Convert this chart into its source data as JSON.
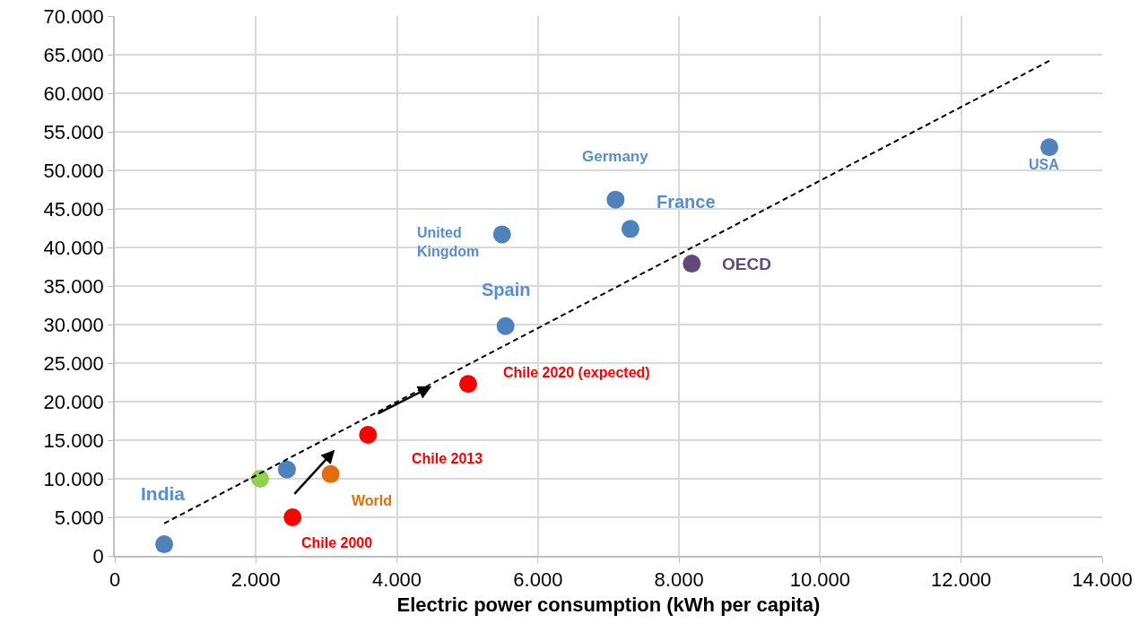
{
  "chart_data": {
    "type": "scatter",
    "xlabel": "Electric power consumption (kWh per capita)",
    "xlim": [
      0,
      14000
    ],
    "xticks": [
      0,
      {
        "value": 2000,
        "label": "2.000"
      },
      {
        "value": 4000,
        "label": "4.000"
      },
      {
        "value": 6000,
        "label": "6.000"
      },
      {
        "value": 8000,
        "label": "8.000"
      },
      {
        "value": 10000,
        "label": "10.000"
      },
      {
        "value": 12000,
        "label": "12.000"
      },
      {
        "value": 14000,
        "label": "14.000"
      }
    ],
    "ylim": [
      0,
      70000
    ],
    "yticks": [
      0,
      {
        "value": 5000,
        "label": "5.000"
      },
      {
        "value": 10000,
        "label": "10.000"
      },
      {
        "value": 15000,
        "label": "15.000"
      },
      {
        "value": 20000,
        "label": "20.000"
      },
      {
        "value": 25000,
        "label": "25.000"
      },
      {
        "value": 30000,
        "label": "30.000"
      },
      {
        "value": 35000,
        "label": "35.000"
      },
      {
        "value": 40000,
        "label": "40.000"
      },
      {
        "value": 45000,
        "label": "45.000"
      },
      {
        "value": 50000,
        "label": "50.000"
      },
      {
        "value": 55000,
        "label": "55.000"
      },
      {
        "value": 60000,
        "label": "60.000"
      },
      {
        "value": 65000,
        "label": "65.000"
      },
      {
        "value": 70000,
        "label": "70.000"
      }
    ],
    "grid": true,
    "legend": false,
    "marker": "circle",
    "series": [
      {
        "name": "India",
        "color": "#4f81bd",
        "x": [
          700
        ],
        "values": [
          1500
        ]
      },
      {
        "color": "#92d050",
        "x": [
          2060
        ],
        "values": [
          10000
        ]
      },
      {
        "color": "#4f81bd",
        "x": [
          2440
        ],
        "values": [
          11200
        ]
      },
      {
        "name": "Chile 2000",
        "color": "#ff0000",
        "x": [
          2520
        ],
        "values": [
          5000
        ]
      },
      {
        "name": "Chile 2013",
        "color": "#ff0000",
        "x": [
          3590
        ],
        "values": [
          15700
        ]
      },
      {
        "name": "Chile 2020 (expected)",
        "color": "#ff0000",
        "x": [
          5010
        ],
        "values": [
          22300
        ]
      },
      {
        "name": "Spain",
        "color": "#4f81bd",
        "x": [
          5540
        ],
        "values": [
          29800
        ]
      },
      {
        "name": "World",
        "color": "#e46c0a",
        "x": [
          3060
        ],
        "values": [
          10600
        ]
      },
      {
        "name": "United Kingdom",
        "color": "#4f81bd",
        "x": [
          5490
        ],
        "values": [
          41700
        ]
      },
      {
        "name": "Germany",
        "color": "#4f81bd",
        "x": [
          7100
        ],
        "values": [
          46200
        ]
      },
      {
        "name": "OECD",
        "color": "#604a7b",
        "x": [
          8180
        ],
        "values": [
          37900
        ]
      },
      {
        "name": "France",
        "color": "#4f81bd",
        "x": [
          7310
        ],
        "values": [
          42400
        ]
      },
      {
        "name": "USA",
        "color": "#4f81bd",
        "x": [
          13250
        ],
        "values": [
          53000
        ]
      },
      {
        "type": "line",
        "color": "#000000",
        "line_style": "dashed",
        "marker": "none",
        "x": [
          700,
          13250
        ],
        "values": [
          4200,
          64200
        ]
      }
    ]
  }
}
